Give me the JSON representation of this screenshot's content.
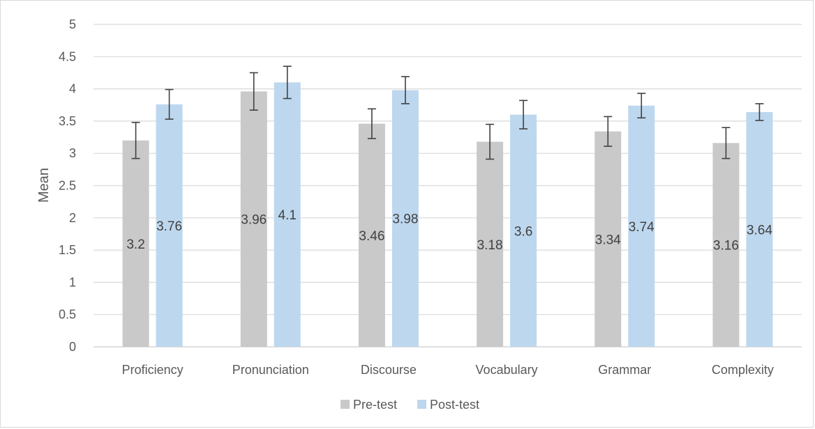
{
  "chart_data": {
    "type": "bar",
    "categories": [
      "Proficiency",
      "Pronunciation",
      "Discourse",
      "Vocabulary",
      "Grammar",
      "Complexity"
    ],
    "series": [
      {
        "name": "Pre-test",
        "color": "#c9c9c9",
        "values": [
          3.2,
          3.96,
          3.46,
          3.18,
          3.34,
          3.16
        ],
        "error": [
          0.28,
          0.29,
          0.23,
          0.27,
          0.23,
          0.24
        ]
      },
      {
        "name": "Post-test",
        "color": "#bdd7ee",
        "values": [
          3.76,
          4.1,
          3.98,
          3.6,
          3.74,
          3.64
        ],
        "error": [
          0.23,
          0.25,
          0.21,
          0.22,
          0.19,
          0.13
        ]
      }
    ],
    "data_labels": [
      [
        "3.2",
        "3.96",
        "3.46",
        "3.18",
        "3.34",
        "3.16"
      ],
      [
        "3.76",
        "4.1",
        "3.98",
        "3.6",
        "3.74",
        "3.64"
      ]
    ],
    "ylabel": "Mean",
    "xlabel": "",
    "title": "",
    "ylim": [
      0,
      5
    ],
    "yticks": [
      "0",
      "0.5",
      "1",
      "1.5",
      "2",
      "2.5",
      "3",
      "3.5",
      "4",
      "4.5",
      "5"
    ],
    "grid": true,
    "legend_position": "bottom",
    "error_bar_color": "#404040",
    "gridline_color": "#d9d9d9"
  }
}
